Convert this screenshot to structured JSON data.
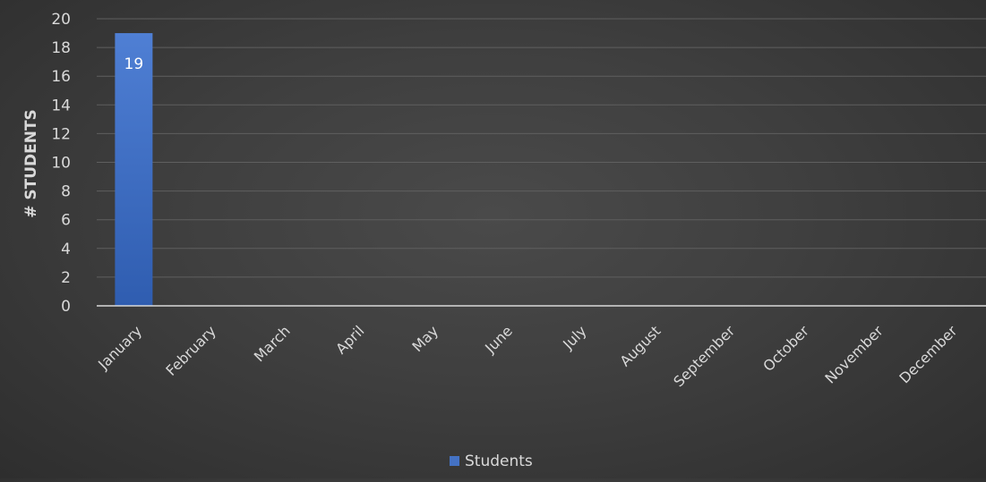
{
  "chart_data": {
    "type": "bar",
    "categories": [
      "January",
      "February",
      "March",
      "April",
      "May",
      "June",
      "July",
      "August",
      "September",
      "October",
      "November",
      "December"
    ],
    "series": [
      {
        "name": "Students",
        "values": [
          19,
          0,
          0,
          0,
          0,
          0,
          0,
          0,
          0,
          0,
          0,
          0
        ]
      }
    ],
    "data_labels": [
      "19"
    ],
    "title": "",
    "xlabel": "",
    "ylabel": "# STUDENTS",
    "ylim": [
      0,
      20
    ],
    "yticks": [
      "0",
      "2",
      "4",
      "6",
      "8",
      "10",
      "12",
      "14",
      "16",
      "18",
      "20"
    ],
    "grid": true,
    "legend_position": "bottom",
    "colors": {
      "bar": "#4472c4",
      "bar_dark": "#3a64b3",
      "grid": "#5f5f5f",
      "axis": "#d9d9d9",
      "text": "#d9d9d9",
      "data_label": "#ffffff"
    }
  }
}
